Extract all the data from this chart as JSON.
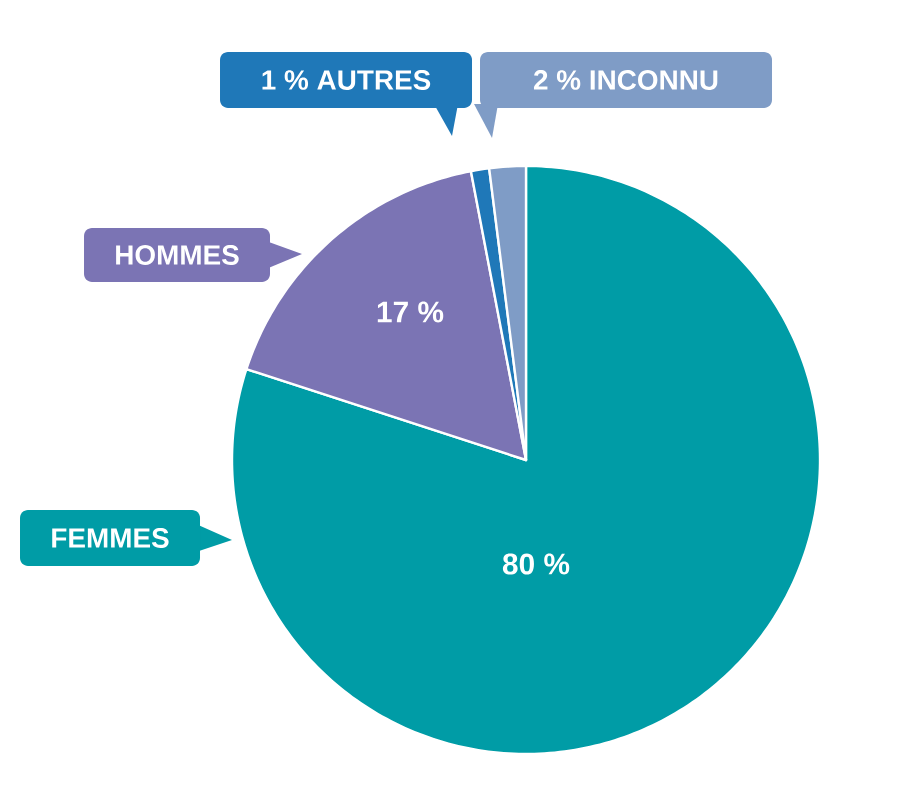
{
  "chart_data": {
    "type": "pie",
    "categories": [
      "FEMMES",
      "HOMMES",
      "AUTRES",
      "INCONNU"
    ],
    "values": [
      80,
      17,
      1,
      2
    ],
    "colors": [
      "#009ca6",
      "#7b74b4",
      "#1f78b8",
      "#7f9cc6"
    ],
    "value_labels": [
      "80 %",
      "17 %",
      "1 %",
      "2 %"
    ],
    "legend": "left"
  }
}
